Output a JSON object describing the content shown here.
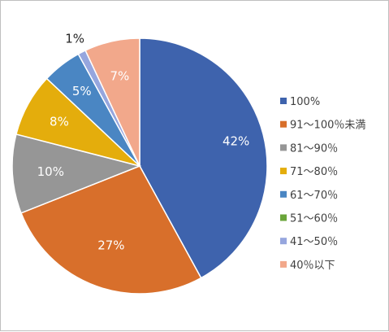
{
  "chart_data": {
    "type": "pie",
    "title": "",
    "legend_position": "right",
    "categories": [
      "100%",
      "91～100％未満",
      "81～90％",
      "71～80％",
      "61～70％",
      "51～60％",
      "41～50％",
      "40％以下"
    ],
    "values": [
      42,
      27,
      10,
      8,
      5,
      0,
      1,
      7
    ],
    "data_labels": [
      "42%",
      "27%",
      "10%",
      "8%",
      "5%",
      "",
      "1%",
      "7%"
    ],
    "colors": [
      "#3e63ad",
      "#d86f2b",
      "#969696",
      "#e4ad0c",
      "#4a86c3",
      "#6aa53a",
      "#96a6de",
      "#f2a88b"
    ]
  }
}
